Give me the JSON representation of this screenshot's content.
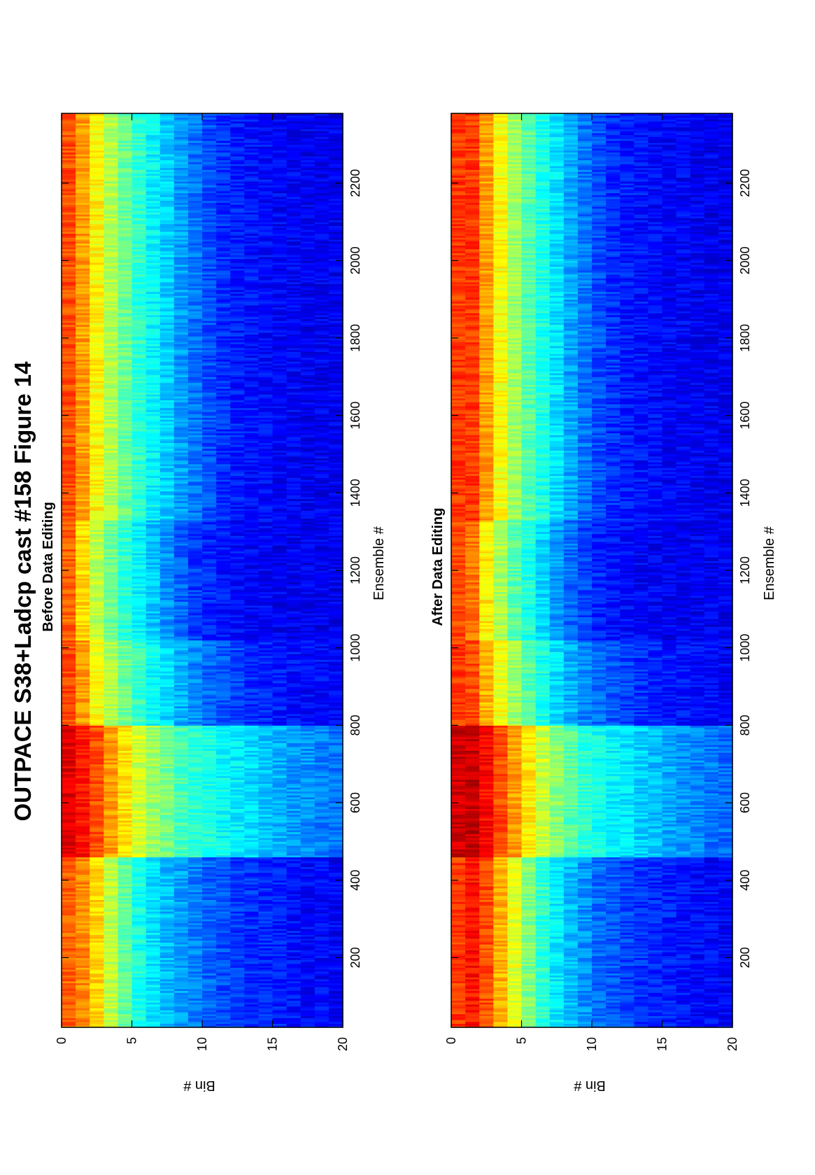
{
  "figure": {
    "title": "OUTPACE S38+Ladcp cast #158  Figure 14"
  },
  "chart_data": [
    {
      "type": "heatmap",
      "title": "Before Data Editing",
      "xlabel": "Ensemble #",
      "ylabel": "Bin #",
      "x_range": [
        20,
        2380
      ],
      "y_range": [
        0,
        20
      ],
      "bins": 20,
      "x_ticks": [
        200,
        400,
        600,
        800,
        1000,
        1200,
        1400,
        1600,
        1800,
        2000,
        2200
      ],
      "y_ticks": [
        0,
        5,
        10,
        15,
        20
      ],
      "colormap": "jet",
      "orientation": "rotated 90° counter-clockwise",
      "profile_segments": [
        {
          "ensemble_start": 20,
          "ensemble_end": 460,
          "profile": [
            0.78,
            0.74,
            0.66,
            0.56,
            0.47,
            0.4,
            0.35,
            0.31,
            0.28,
            0.25,
            0.22,
            0.2,
            0.18,
            0.17,
            0.16,
            0.15,
            0.14,
            0.13,
            0.13,
            0.12
          ]
        },
        {
          "ensemble_start": 460,
          "ensemble_end": 800,
          "profile": [
            0.9,
            0.86,
            0.8,
            0.72,
            0.65,
            0.58,
            0.53,
            0.49,
            0.45,
            0.42,
            0.4,
            0.38,
            0.36,
            0.34,
            0.32,
            0.3,
            0.28,
            0.27,
            0.25,
            0.24
          ]
        },
        {
          "ensemble_start": 800,
          "ensemble_end": 1020,
          "profile": [
            0.8,
            0.72,
            0.62,
            0.55,
            0.48,
            0.43,
            0.38,
            0.34,
            0.3,
            0.26,
            0.23,
            0.21,
            0.19,
            0.17,
            0.16,
            0.15,
            0.14,
            0.13,
            0.13,
            0.12
          ]
        },
        {
          "ensemble_start": 1020,
          "ensemble_end": 1330,
          "profile": [
            0.78,
            0.66,
            0.56,
            0.48,
            0.42,
            0.37,
            0.32,
            0.27,
            0.22,
            0.18,
            0.16,
            0.14,
            0.13,
            0.12,
            0.12,
            0.11,
            0.11,
            0.11,
            0.11,
            0.11
          ]
        },
        {
          "ensemble_start": 1330,
          "ensemble_end": 2380,
          "profile": [
            0.8,
            0.72,
            0.63,
            0.55,
            0.48,
            0.42,
            0.37,
            0.33,
            0.28,
            0.24,
            0.2,
            0.17,
            0.15,
            0.14,
            0.13,
            0.12,
            0.12,
            0.11,
            0.11,
            0.11
          ]
        }
      ]
    },
    {
      "type": "heatmap",
      "title": "After Data Editing",
      "xlabel": "Ensemble #",
      "ylabel": "Bin #",
      "x_range": [
        20,
        2380
      ],
      "y_range": [
        0,
        20
      ],
      "bins": 20,
      "x_ticks": [
        200,
        400,
        600,
        800,
        1000,
        1200,
        1400,
        1600,
        1800,
        2000,
        2200
      ],
      "y_ticks": [
        0,
        5,
        10,
        15,
        20
      ],
      "colormap": "jet",
      "orientation": "rotated 90° counter-clockwise",
      "profile_segments": [
        {
          "ensemble_start": 20,
          "ensemble_end": 460,
          "profile": [
            0.82,
            0.86,
            0.8,
            0.7,
            0.6,
            0.5,
            0.42,
            0.36,
            0.31,
            0.27,
            0.23,
            0.21,
            0.19,
            0.17,
            0.16,
            0.15,
            0.14,
            0.13,
            0.13,
            0.12
          ]
        },
        {
          "ensemble_start": 460,
          "ensemble_end": 800,
          "profile": [
            0.92,
            0.93,
            0.87,
            0.8,
            0.72,
            0.64,
            0.57,
            0.51,
            0.46,
            0.42,
            0.39,
            0.37,
            0.35,
            0.33,
            0.31,
            0.29,
            0.27,
            0.26,
            0.24,
            0.23
          ]
        },
        {
          "ensemble_start": 800,
          "ensemble_end": 1020,
          "profile": [
            0.82,
            0.8,
            0.7,
            0.61,
            0.53,
            0.46,
            0.4,
            0.35,
            0.3,
            0.26,
            0.23,
            0.21,
            0.19,
            0.17,
            0.16,
            0.15,
            0.14,
            0.13,
            0.13,
            0.12
          ]
        },
        {
          "ensemble_start": 1020,
          "ensemble_end": 1330,
          "profile": [
            0.8,
            0.76,
            0.64,
            0.54,
            0.46,
            0.4,
            0.34,
            0.28,
            0.23,
            0.19,
            0.16,
            0.14,
            0.13,
            0.12,
            0.12,
            0.11,
            0.11,
            0.11,
            0.11,
            0.11
          ]
        },
        {
          "ensemble_start": 1330,
          "ensemble_end": 2380,
          "profile": [
            0.82,
            0.82,
            0.72,
            0.62,
            0.53,
            0.46,
            0.4,
            0.35,
            0.29,
            0.24,
            0.2,
            0.17,
            0.15,
            0.14,
            0.13,
            0.12,
            0.12,
            0.11,
            0.11,
            0.11
          ]
        }
      ]
    }
  ]
}
